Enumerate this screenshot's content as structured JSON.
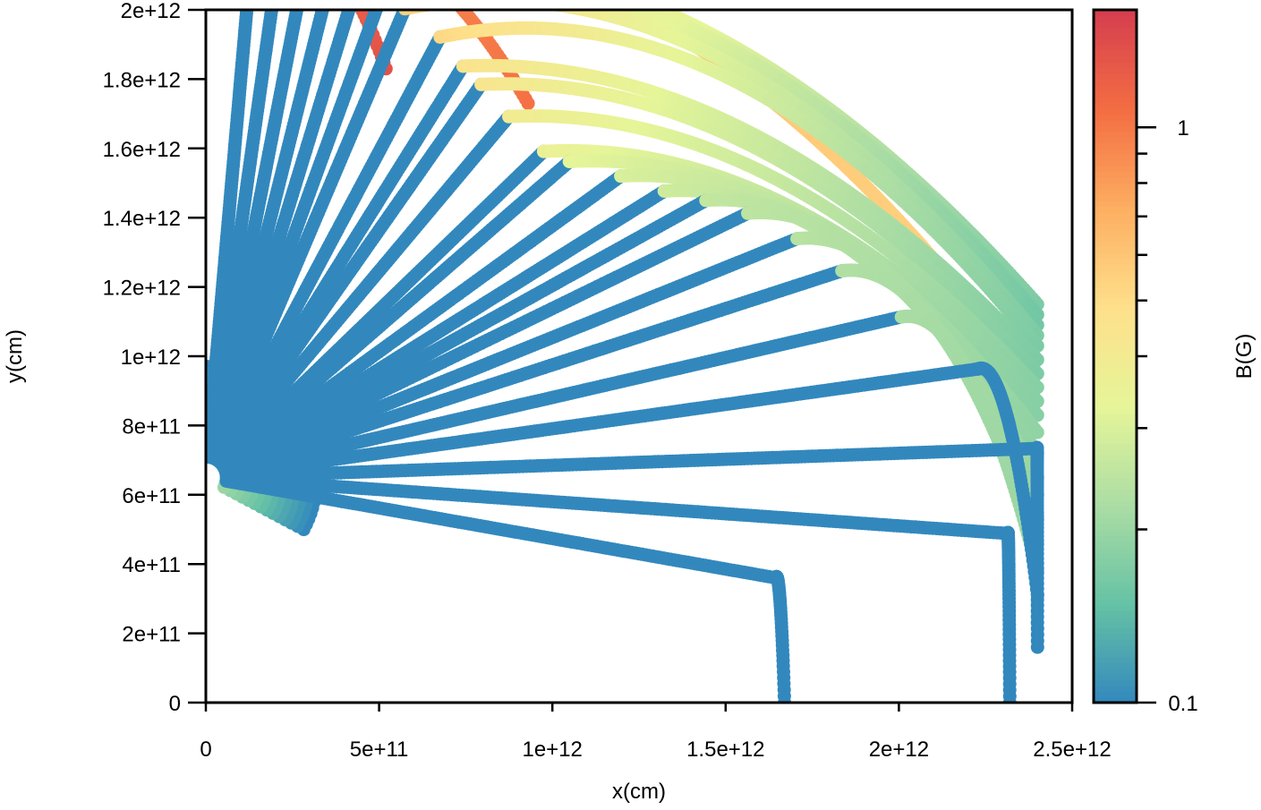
{
  "chart_data": {
    "type": "scatter",
    "title": "",
    "xlabel": "x(cm)",
    "ylabel": "y(cm)",
    "xlim": [
      0,
      2500000000000
    ],
    "ylim": [
      0,
      2000000000000
    ],
    "grid": false,
    "x_ticks": [
      {
        "value": 0,
        "label": "0"
      },
      {
        "value": 500000000000,
        "label": "5e+11"
      },
      {
        "value": 1000000000000,
        "label": "1e+12"
      },
      {
        "value": 1500000000000,
        "label": "1.5e+12"
      },
      {
        "value": 2000000000000,
        "label": "2e+12"
      },
      {
        "value": 2500000000000,
        "label": "2.5e+12"
      }
    ],
    "y_ticks": [
      {
        "value": 0,
        "label": "0"
      },
      {
        "value": 200000000000,
        "label": "2e+11"
      },
      {
        "value": 400000000000,
        "label": "4e+11"
      },
      {
        "value": 600000000000,
        "label": "6e+11"
      },
      {
        "value": 800000000000,
        "label": "8e+11"
      },
      {
        "value": 1000000000000,
        "label": "1e+12"
      },
      {
        "value": 1200000000000,
        "label": "1.2e+12"
      },
      {
        "value": 1400000000000,
        "label": "1.4e+12"
      },
      {
        "value": 1600000000000,
        "label": "1.6e+12"
      },
      {
        "value": 1800000000000,
        "label": "1.8e+12"
      },
      {
        "value": 2000000000000,
        "label": "2e+12"
      }
    ],
    "colorbar": {
      "label": "B(G)",
      "scale": "log",
      "range": [
        0.1,
        1.6
      ],
      "tick_labels": [
        {
          "value": 0.1,
          "label": "0.1"
        },
        {
          "value": 1,
          "label": "1"
        }
      ],
      "minor_ticks": [
        0.2,
        0.3,
        0.4,
        0.5,
        0.6,
        0.7,
        0.8,
        0.9
      ],
      "colormap": "Spectral_r",
      "colormap_stops": [
        "#3288bd",
        "#66c2a5",
        "#abdda4",
        "#e6f598",
        "#fee08b",
        "#fdae61",
        "#f46d43",
        "#d53e4f"
      ]
    },
    "field_lines": [
      {
        "angle_deg": 85,
        "rb": 1540000000000,
        "end": [
          520000000000,
          1830000000000
        ],
        "b_start": 0.82,
        "b_end": 1.35
      },
      {
        "angle_deg": 82,
        "rb": 1535000000000,
        "end": [
          930000000000,
          1730000000000
        ],
        "b_start": 0.78,
        "b_end": 1.05
      },
      {
        "angle_deg": 79,
        "rb": 1520000000000,
        "end": [
          2100000000000,
          1280000000000
        ],
        "b_start": 0.72,
        "b_end": 0.55
      },
      {
        "angle_deg": 76,
        "rb": 1515000000000,
        "end": [
          2400000000000,
          1150000000000
        ],
        "b_start": 0.68,
        "b_end": 0.17
      },
      {
        "angle_deg": 73,
        "rb": 1505000000000,
        "end": [
          2400000000000,
          1120000000000
        ],
        "b_start": 0.62,
        "b_end": 0.16
      },
      {
        "angle_deg": 70,
        "rb": 1490000000000,
        "end": [
          2400000000000,
          1090000000000
        ],
        "b_start": 0.58,
        "b_end": 0.16
      },
      {
        "angle_deg": 67,
        "rb": 1470000000000,
        "end": [
          2400000000000,
          1060000000000
        ],
        "b_start": 0.55,
        "b_end": 0.17
      },
      {
        "angle_deg": 62,
        "rb": 1440000000000,
        "end": [
          2400000000000,
          1030000000000
        ],
        "b_start": 0.52,
        "b_end": 0.17
      },
      {
        "angle_deg": 58,
        "rb": 1400000000000,
        "end": [
          2400000000000,
          990000000000
        ],
        "b_start": 0.46,
        "b_end": 0.17
      },
      {
        "angle_deg": 55,
        "rb": 1385000000000,
        "end": [
          2400000000000,
          950000000000
        ],
        "b_start": 0.44,
        "b_end": 0.17
      },
      {
        "angle_deg": 50,
        "rb": 1360000000000,
        "end": [
          2400000000000,
          910000000000
        ],
        "b_start": 0.4,
        "b_end": 0.18
      },
      {
        "angle_deg": 44,
        "rb": 1355000000000,
        "end": [
          2400000000000,
          870000000000
        ],
        "b_start": 0.36,
        "b_end": 0.18
      },
      {
        "angle_deg": 41,
        "rb": 1390000000000,
        "end": [
          2400000000000,
          830000000000
        ],
        "b_start": 0.33,
        "b_end": 0.18
      },
      {
        "angle_deg": 36,
        "rb": 1480000000000,
        "end": [
          2400000000000,
          780000000000
        ],
        "b_start": 0.3,
        "b_end": 0.19
      },
      {
        "angle_deg": 32,
        "rb": 1560000000000,
        "end": [
          2400000000000,
          720000000000
        ],
        "b_start": 0.28,
        "b_end": 0.19
      },
      {
        "angle_deg": 29,
        "rb": 1650000000000,
        "end": [
          2400000000000,
          650000000000
        ],
        "b_start": 0.26,
        "b_end": 0.2
      },
      {
        "angle_deg": 26,
        "rb": 1740000000000,
        "end": [
          2400000000000,
          600000000000
        ],
        "b_start": 0.25,
        "b_end": 0.2
      },
      {
        "angle_deg": 22,
        "rb": 1840000000000,
        "end": [
          2400000000000,
          530000000000
        ],
        "b_start": 0.24,
        "b_end": 0.2
      },
      {
        "angle_deg": 18,
        "rb": 1930000000000,
        "end": [
          2400000000000,
          460000000000
        ],
        "b_start": 0.23,
        "b_end": 0.2
      },
      {
        "angle_deg": 13,
        "rb": 2060000000000,
        "end": [
          2400000000000,
          380000000000
        ],
        "b_start": 0.22,
        "b_end": 0.2
      },
      {
        "angle_deg": 8,
        "rb": 2250000000000,
        "end": [
          2400000000000,
          310000000000
        ],
        "b_start": 0.1,
        "b_end": 0.1
      },
      {
        "angle_deg": 2,
        "rb": 2400000000000,
        "end": [
          2400000000000,
          160000000000
        ],
        "b_start": 0.1,
        "b_end": 0.1
      },
      {
        "angle_deg": -4,
        "rb": 2320000000000,
        "end": [
          2320000000000,
          0
        ],
        "b_start": 0.1,
        "b_end": 0.1
      },
      {
        "angle_deg": -10,
        "rb": 1670000000000,
        "end": [
          1670000000000,
          0
        ],
        "b_start": 0.1,
        "b_end": 0.1
      }
    ],
    "source_region": {
      "center": [
        0,
        650000000000
      ],
      "radius_inner": 60000000000,
      "radius_outer": 320000000000,
      "b_inner": 0.2,
      "b_outer": 0.1
    }
  }
}
